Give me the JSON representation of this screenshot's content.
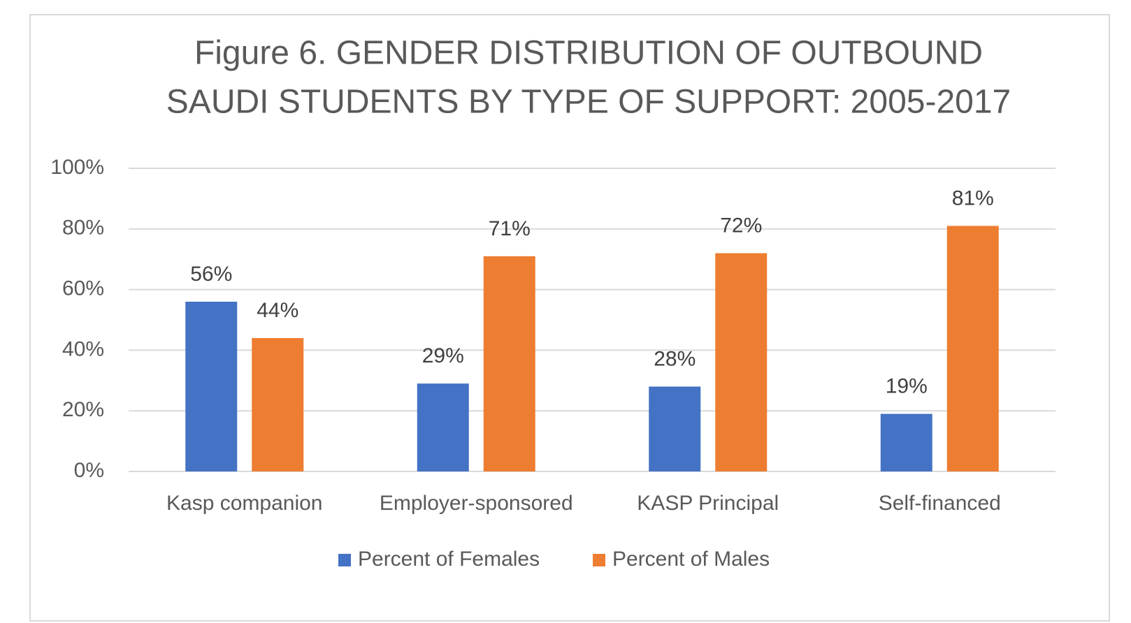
{
  "chart_data": {
    "type": "bar",
    "title_lines": [
      "Figure 6. GENDER DISTRIBUTION OF OUTBOUND",
      "SAUDI STUDENTS BY TYPE OF SUPPORT: 2005-2017"
    ],
    "xlabel": "",
    "ylabel": "",
    "categories": [
      "Kasp companion",
      "Employer-sponsored",
      "KASP Principal",
      "Self-financed"
    ],
    "series": [
      {
        "name": "Percent of Females",
        "color": "#4472C4",
        "values": [
          56,
          29,
          28,
          19
        ],
        "labels": [
          "56%",
          "29%",
          "28%",
          "19%"
        ]
      },
      {
        "name": "Percent of Males",
        "color": "#ED7D31",
        "values": [
          44,
          71,
          72,
          81
        ],
        "labels": [
          "44%",
          "71%",
          "72%",
          "81%"
        ]
      }
    ],
    "ylim": [
      0,
      100
    ],
    "yticks": [
      0,
      20,
      40,
      60,
      80,
      100
    ],
    "ytick_labels": [
      "0%",
      "20%",
      "40%",
      "60%",
      "80%",
      "100%"
    ],
    "grid": true,
    "legend_position": "bottom"
  }
}
